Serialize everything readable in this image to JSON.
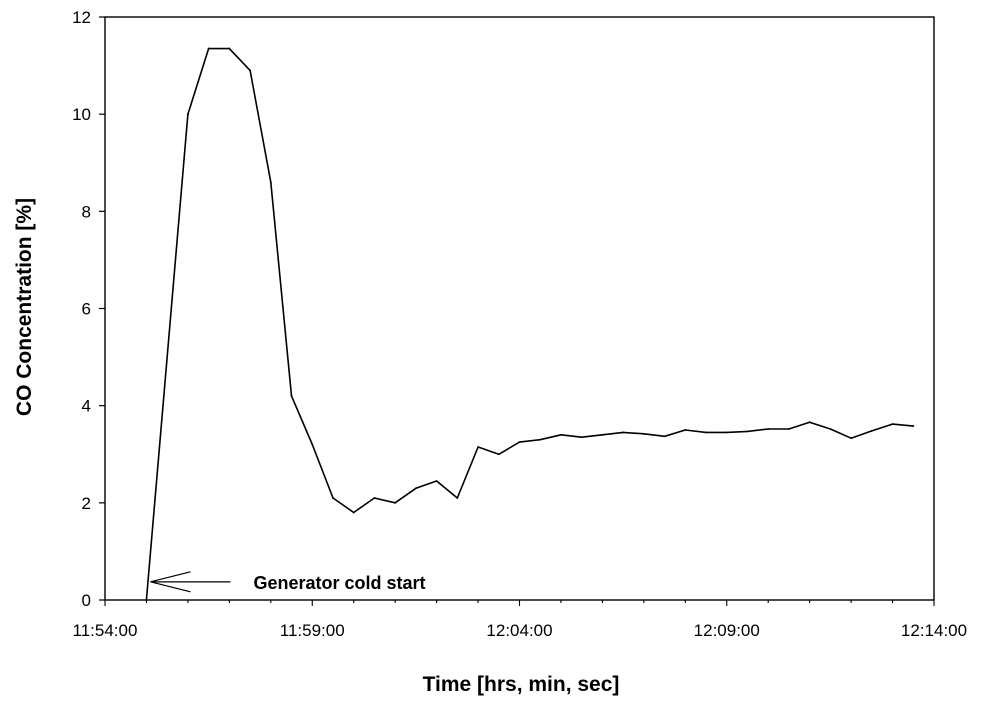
{
  "chart_data": {
    "type": "line",
    "title": "",
    "xlabel": "Time [hrs, min, sec]",
    "ylabel": "CO Concentration [%]",
    "x_tick_labels": [
      "11:54:00",
      "11:59:00",
      "12:04:00",
      "12:09:00",
      "12:14:00"
    ],
    "x_ticks_minutes": [
      0,
      5,
      10,
      15,
      20
    ],
    "xlim_minutes": [
      0,
      20
    ],
    "y_tick_labels": [
      "0",
      "2",
      "4",
      "6",
      "8",
      "10",
      "12"
    ],
    "ylim": [
      0,
      12
    ],
    "grid": false,
    "legend": null,
    "line_color": "#000000",
    "series": [
      {
        "x": [
          "11:55:00",
          "11:56:00",
          "11:56:30",
          "11:57:00",
          "11:57:30",
          "11:58:00",
          "11:58:30",
          "11:59:00",
          "11:59:30",
          "12:00:00",
          "12:00:30",
          "12:01:00",
          "12:01:30",
          "12:02:00",
          "12:02:30",
          "12:03:00",
          "12:03:30",
          "12:04:00",
          "12:04:30",
          "12:05:00",
          "12:05:30",
          "12:06:00",
          "12:06:30",
          "12:07:00",
          "12:07:30",
          "12:08:00",
          "12:08:30",
          "12:09:00",
          "12:09:30",
          "12:10:00",
          "12:10:30",
          "12:11:00",
          "12:11:30",
          "12:12:00",
          "12:12:30",
          "12:13:00",
          "12:13:30"
        ],
        "x_minutes": [
          1.0,
          2.0,
          2.5,
          3.0,
          3.5,
          4.0,
          4.5,
          5.0,
          5.5,
          6.0,
          6.5,
          7.0,
          7.5,
          8.0,
          8.5,
          9.0,
          9.5,
          10.0,
          10.5,
          11.0,
          11.5,
          12.0,
          12.5,
          13.0,
          13.5,
          14.0,
          14.5,
          15.0,
          15.5,
          16.0,
          16.5,
          17.0,
          17.5,
          18.0,
          18.5,
          19.0,
          19.5
        ],
        "y": [
          0,
          10.0,
          11.35,
          11.35,
          10.9,
          8.6,
          4.2,
          3.2,
          2.1,
          1.8,
          2.1,
          2.0,
          2.3,
          2.45,
          2.1,
          3.15,
          3.0,
          3.25,
          3.3,
          3.4,
          3.35,
          3.4,
          3.45,
          3.42,
          3.37,
          3.5,
          3.45,
          3.45,
          3.47,
          3.52,
          3.52,
          3.66,
          3.52,
          3.33,
          3.48,
          3.62,
          3.58
        ]
      }
    ],
    "annotations": [
      {
        "text": "Generator cold start",
        "x": "11:55:00",
        "y": 0.6,
        "arrow": true
      }
    ]
  }
}
